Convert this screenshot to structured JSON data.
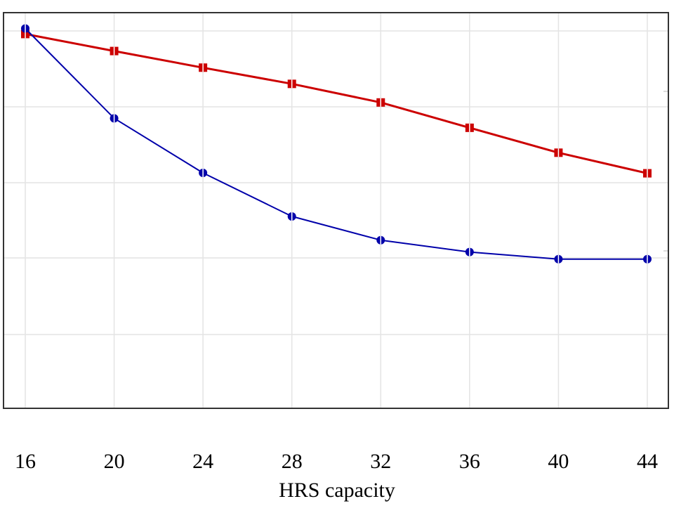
{
  "chart_data": {
    "type": "line",
    "title": "",
    "xlabel": "HRS capacity",
    "ylabel": "",
    "x": [
      16,
      20,
      24,
      28,
      32,
      36,
      40,
      44
    ],
    "xticks": [
      "16",
      "20",
      "24",
      "28",
      "32",
      "36",
      "40",
      "44"
    ],
    "xlim": [
      16,
      44
    ],
    "ylim": [
      0,
      100
    ],
    "grid": true,
    "series": [
      {
        "color": "#cc0000",
        "marker": "square",
        "values": [
          94.6,
          90.3,
          86.1,
          82.0,
          77.3,
          70.9,
          64.6,
          59.4
        ]
      },
      {
        "color": "#0000aa",
        "marker": "circle",
        "values": [
          96.0,
          73.3,
          59.5,
          48.5,
          42.5,
          39.5,
          37.7,
          37.7
        ]
      }
    ]
  }
}
